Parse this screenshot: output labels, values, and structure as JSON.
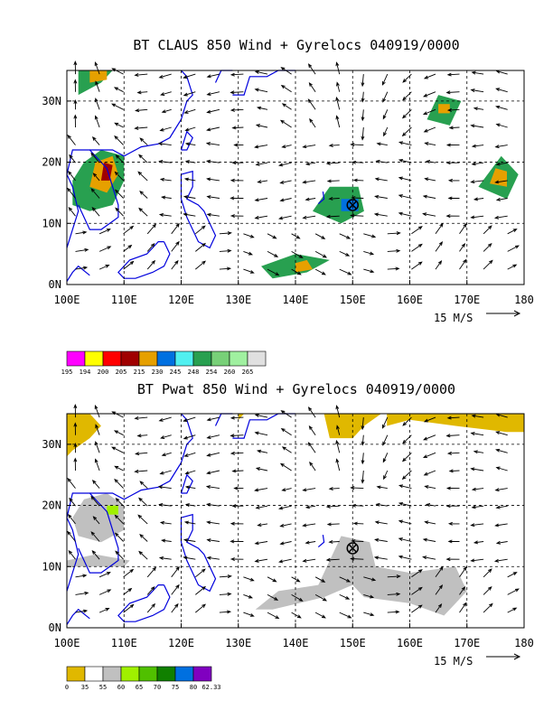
{
  "panels": [
    {
      "title": "BT CLAUS 850 Wind + Gyrelocs 040919/0000",
      "ref_vector_label": "15 M/S",
      "colorbar_labels": [
        "195",
        "194",
        "200",
        "205",
        "215",
        "230",
        "245",
        "248",
        "254",
        "260",
        "265"
      ],
      "colorbar_colors": [
        "#ff00ff",
        "#ffff00",
        "#ff0000",
        "#a00000",
        "#e6a000",
        "#0070e0",
        "#50f0f0",
        "#28a050",
        "#78d078",
        "#a0f0a0",
        "#e0e0e0"
      ]
    },
    {
      "title": "BT Pwat 850 Wind + Gyrelocs 040919/0000",
      "ref_vector_label": "15 M/S",
      "colorbar_labels": [
        "0",
        "35",
        "55",
        "60",
        "65",
        "70",
        "75",
        "80",
        "62.33"
      ],
      "colorbar_colors": [
        "#e0b800",
        "#ffffff",
        "#c0c0c0",
        "#a0f000",
        "#50c000",
        "#108000",
        "#0070e0",
        "#8000c0"
      ]
    }
  ],
  "chart_data": [
    {
      "type": "heatmap",
      "title": "BT CLAUS 850 Wind + Gyrelocs 040919/0000",
      "xlabel": "",
      "ylabel": "",
      "xlim": [
        100,
        180
      ],
      "ylim": [
        0,
        35
      ],
      "x_ticks": [
        "100E",
        "110E",
        "120E",
        "130E",
        "140E",
        "150E",
        "160E",
        "170E",
        "180"
      ],
      "y_ticks": [
        "0N",
        "10N",
        "20N",
        "30N"
      ],
      "grid": true,
      "gyre_location": {
        "lon": 150,
        "lat": 13
      },
      "color_scale": [
        195,
        194,
        200,
        205,
        215,
        230,
        245,
        248,
        254,
        260,
        265
      ]
    },
    {
      "type": "heatmap",
      "title": "BT Pwat 850 Wind + Gyrelocs 040919/0000",
      "xlabel": "",
      "ylabel": "",
      "xlim": [
        100,
        180
      ],
      "ylim": [
        0,
        35
      ],
      "x_ticks": [
        "100E",
        "110E",
        "120E",
        "130E",
        "140E",
        "150E",
        "160E",
        "170E",
        "180"
      ],
      "y_ticks": [
        "0N",
        "10N",
        "20N",
        "30N"
      ],
      "grid": true,
      "gyre_location": {
        "lon": 150,
        "lat": 13
      },
      "color_scale": [
        0,
        35,
        55,
        60,
        65,
        70,
        75,
        80,
        62.33
      ]
    }
  ]
}
